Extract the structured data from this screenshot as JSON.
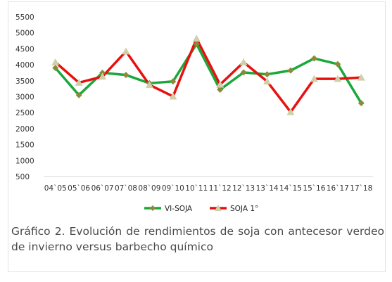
{
  "chart_data": {
    "type": "line",
    "title": "",
    "xlabel": "",
    "ylabel": "",
    "categories": [
      "04`05",
      "05`06",
      "06`07",
      "07`08",
      "08`09",
      "09`10",
      "10`11",
      "11`12",
      "12`13",
      "13`14",
      "14`15",
      "15`16",
      "16`17",
      "17`18"
    ],
    "ylim": [
      500,
      5500
    ],
    "yticks": [
      500,
      1000,
      1500,
      2000,
      2500,
      3000,
      3500,
      4000,
      4500,
      5000,
      5500
    ],
    "grid": false,
    "legend_position": "bottom",
    "series": [
      {
        "name": "VI-SOJA",
        "color": "#1aa83a",
        "marker": "diamond",
        "marker_color": "#8c8a3a",
        "values": [
          3900,
          3050,
          3750,
          3680,
          3420,
          3480,
          4650,
          3220,
          3760,
          3700,
          3820,
          4200,
          4020,
          2800
        ]
      },
      {
        "name": "SOJA 1°",
        "color": "#e8100f",
        "marker": "triangle",
        "marker_color": "#cfd0a9",
        "values": [
          4080,
          3440,
          3630,
          4420,
          3370,
          3010,
          4820,
          3380,
          4080,
          3480,
          2520,
          3560,
          3560,
          3600
        ]
      }
    ]
  },
  "caption": "Gráfico 2. Evolución de rendimientos de soja con antecesor verdeo de invierno versus barbecho químico"
}
